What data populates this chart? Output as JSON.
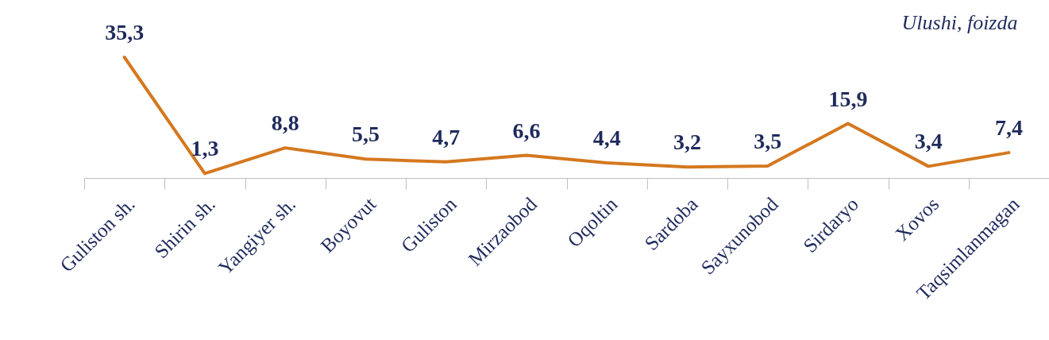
{
  "chart_data": {
    "type": "line",
    "title": "Ulushi, foizda",
    "categories": [
      "Guliston  sh.",
      "Shirin sh.",
      "Yangiyer sh.",
      "Boyovut",
      "Guliston",
      "Mirzaobod",
      "Oqoltin",
      "Sardoba",
      "Sayxunobod",
      "Sirdaryo",
      "Xovos",
      "Taqsimlanmagan"
    ],
    "values": [
      35.3,
      1.3,
      8.8,
      5.5,
      4.7,
      6.6,
      4.4,
      3.2,
      3.5,
      15.9,
      3.4,
      7.4
    ],
    "value_labels": [
      "35,3",
      "1,3",
      "8,8",
      "5,5",
      "4,7",
      "6,6",
      "4,4",
      "3,2",
      "3,5",
      "15,9",
      "3,4",
      "7,4"
    ],
    "color": "#d4781f"
  }
}
